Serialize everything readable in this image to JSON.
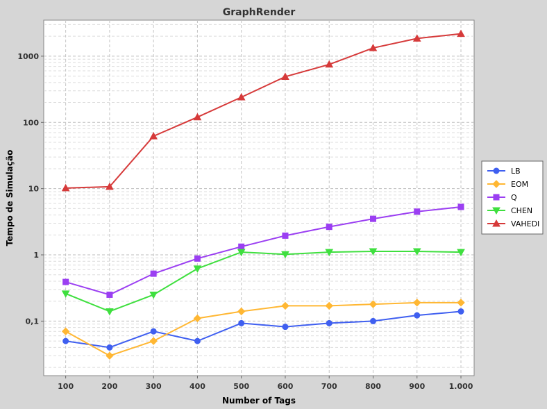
{
  "chart_data": {
    "type": "line",
    "title": "GraphRender",
    "xlabel": "Number of Tags",
    "ylabel": "Tempo de Simulação",
    "y_scale": "log",
    "ylim": [
      0.015,
      3500
    ],
    "x": [
      100,
      200,
      300,
      400,
      500,
      600,
      700,
      800,
      900,
      1000
    ],
    "x_tick_labels": [
      "100",
      "200",
      "300",
      "400",
      "500",
      "600",
      "700",
      "800",
      "900",
      "1.000"
    ],
    "y_ticks": [
      0.1,
      1,
      10,
      100,
      1000
    ],
    "y_tick_labels": [
      "0,1",
      "1",
      "10",
      "100",
      "1000"
    ],
    "grid": true,
    "legend_position": "right",
    "series": [
      {
        "name": "LB",
        "color": "#3f5ff0",
        "marker": "circle",
        "values": [
          0.05,
          0.04,
          0.07,
          0.05,
          0.093,
          0.082,
          0.093,
          0.1,
          0.122,
          0.14
        ]
      },
      {
        "name": "EOM",
        "color": "#ffb733",
        "marker": "diamond",
        "values": [
          0.07,
          0.03,
          0.05,
          0.11,
          0.14,
          0.17,
          0.17,
          0.18,
          0.19,
          0.19
        ]
      },
      {
        "name": "Q",
        "color": "#9b3ff2",
        "marker": "square",
        "values": [
          0.39,
          0.25,
          0.52,
          0.88,
          1.33,
          1.95,
          2.65,
          3.5,
          4.5,
          5.3
        ]
      },
      {
        "name": "CHEN",
        "color": "#3fdf3f",
        "marker": "triangle-down",
        "values": [
          0.26,
          0.14,
          0.25,
          0.62,
          1.1,
          1.02,
          1.1,
          1.13,
          1.13,
          1.1
        ]
      },
      {
        "name": "VAHEDI",
        "color": "#d63a3a",
        "marker": "triangle-up",
        "values": [
          10.2,
          10.7,
          62,
          120,
          240,
          490,
          750,
          1330,
          1850,
          2180
        ]
      }
    ]
  }
}
